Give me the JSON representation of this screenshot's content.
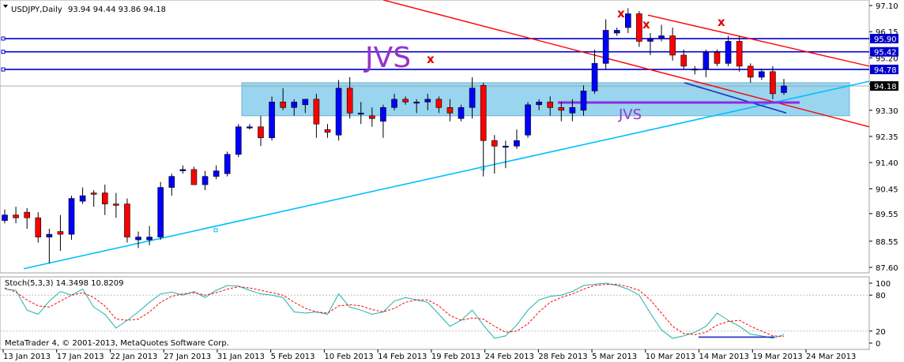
{
  "header": {
    "symbol": "USDJPY,Daily",
    "ohlc": "93.94 94.44 93.86 94.18"
  },
  "copyright": "MetaTrader 4, © 2001-2013, MetaQuotes Software Corp.",
  "indicator": {
    "label": "Stoch(5,3,3) 14.3498 10.8209",
    "levels": [
      "100",
      "80",
      "20",
      "0"
    ],
    "main_color": "#20b2aa",
    "signal_color": "#ff0000"
  },
  "annotations": {
    "jvs_big": "JVS",
    "jvs_small": "JVS",
    "x_marker": "x"
  },
  "colors": {
    "bull": "#0000ff",
    "bear": "#ff0000",
    "zone_fill": "#87ceeb",
    "level_line": "#0000cd",
    "trend_up": "#00bfff",
    "trend_down": "#ff0000",
    "divergence": "#8a2be2"
  },
  "chart_data": [
    {
      "type": "candlestick",
      "symbol": "USDJPY",
      "timeframe": "Daily",
      "ylim": [
        87.4,
        97.3
      ],
      "y_ticks": [
        "97.10",
        "96.15",
        "95.20",
        "94.25",
        "93.30",
        "92.35",
        "91.40",
        "90.45",
        "89.55",
        "88.55",
        "87.60"
      ],
      "current_price": "94.18",
      "horizontal_levels": [
        "95.90",
        "95.42",
        "94.78"
      ],
      "x_labels": [
        "13 Jan 2013",
        "17 Jan 2013",
        "22 Jan 2013",
        "27 Jan 2013",
        "31 Jan 2013",
        "5 Feb 2013",
        "10 Feb 2013",
        "14 Feb 2013",
        "19 Feb 2013",
        "24 Feb 2013",
        "28 Feb 2013",
        "5 Mar 2013",
        "10 Mar 2013",
        "14 Mar 2013",
        "19 Mar 2013",
        "24 Mar 2013"
      ],
      "support_zone": [
        93.1,
        94.3
      ],
      "candles": [
        [
          89.3,
          89.7,
          89.2,
          89.5
        ],
        [
          89.5,
          89.8,
          89.2,
          89.4
        ],
        [
          89.6,
          89.75,
          89.0,
          89.4
        ],
        [
          89.4,
          89.6,
          88.5,
          88.7
        ],
        [
          88.7,
          89.0,
          87.75,
          88.8
        ],
        [
          88.9,
          89.5,
          88.2,
          88.8
        ],
        [
          88.8,
          90.2,
          88.6,
          90.1
        ],
        [
          90.0,
          90.5,
          89.9,
          90.2
        ],
        [
          90.3,
          90.4,
          89.8,
          90.25
        ],
        [
          90.3,
          90.6,
          89.5,
          89.9
        ],
        [
          89.9,
          90.3,
          89.4,
          89.85
        ],
        [
          89.9,
          90.1,
          88.5,
          88.7
        ],
        [
          88.6,
          88.9,
          88.3,
          88.7
        ],
        [
          88.6,
          89.1,
          88.4,
          88.7
        ],
        [
          88.7,
          90.7,
          88.6,
          90.5
        ],
        [
          90.5,
          91.0,
          90.2,
          90.9
        ],
        [
          91.1,
          91.3,
          91.0,
          91.15
        ],
        [
          91.15,
          91.25,
          90.6,
          90.6
        ],
        [
          90.6,
          91.1,
          90.4,
          90.9
        ],
        [
          90.9,
          91.3,
          90.8,
          91.1
        ],
        [
          91.0,
          91.8,
          90.9,
          91.7
        ],
        [
          91.7,
          92.8,
          91.6,
          92.7
        ],
        [
          92.7,
          92.8,
          92.6,
          92.7
        ],
        [
          92.7,
          93.1,
          92.0,
          92.3
        ],
        [
          92.3,
          93.8,
          92.2,
          93.6
        ],
        [
          93.6,
          94.1,
          93.3,
          93.4
        ],
        [
          93.4,
          93.7,
          93.1,
          93.6
        ],
        [
          93.5,
          93.7,
          93.2,
          93.7
        ],
        [
          93.7,
          93.9,
          92.3,
          92.8
        ],
        [
          92.6,
          92.8,
          92.3,
          92.5
        ],
        [
          92.4,
          94.4,
          92.2,
          94.1
        ],
        [
          94.1,
          94.5,
          93.0,
          93.2
        ],
        [
          93.2,
          93.6,
          92.8,
          93.2
        ],
        [
          93.1,
          93.4,
          92.7,
          93.0
        ],
        [
          92.9,
          93.5,
          92.3,
          93.4
        ],
        [
          93.4,
          93.9,
          93.3,
          93.7
        ],
        [
          93.7,
          93.8,
          93.5,
          93.6
        ],
        [
          93.6,
          93.7,
          93.2,
          93.6
        ],
        [
          93.6,
          93.9,
          93.3,
          93.7
        ],
        [
          93.7,
          93.8,
          93.2,
          93.4
        ],
        [
          93.4,
          93.7,
          92.9,
          93.2
        ],
        [
          93.0,
          93.5,
          92.9,
          93.4
        ],
        [
          93.4,
          94.5,
          93.0,
          94.1
        ],
        [
          94.2,
          94.3,
          90.9,
          92.2
        ],
        [
          92.2,
          92.4,
          91.0,
          92.0
        ],
        [
          92.0,
          92.2,
          91.2,
          92.0
        ],
        [
          92.0,
          92.6,
          91.9,
          92.2
        ],
        [
          92.4,
          93.6,
          92.3,
          93.5
        ],
        [
          93.5,
          93.7,
          93.3,
          93.6
        ],
        [
          93.6,
          93.8,
          93.1,
          93.4
        ],
        [
          93.4,
          93.6,
          92.9,
          93.3
        ],
        [
          93.2,
          93.7,
          92.9,
          93.4
        ],
        [
          93.3,
          94.2,
          93.1,
          94.0
        ],
        [
          94.0,
          95.5,
          93.9,
          95.0
        ],
        [
          95.0,
          96.6,
          94.8,
          96.2
        ],
        [
          96.1,
          96.3,
          96.0,
          96.2
        ],
        [
          96.3,
          97.0,
          96.1,
          96.8
        ],
        [
          96.8,
          96.9,
          95.6,
          95.8
        ],
        [
          95.8,
          96.1,
          95.3,
          95.9
        ],
        [
          95.9,
          96.4,
          95.8,
          96.0
        ],
        [
          96.0,
          96.3,
          95.1,
          95.3
        ],
        [
          95.3,
          95.5,
          94.8,
          94.9
        ],
        [
          94.8,
          94.9,
          94.6,
          94.8
        ],
        [
          94.8,
          95.5,
          94.5,
          95.4
        ],
        [
          95.4,
          95.5,
          94.9,
          95.0
        ],
        [
          95.0,
          96.0,
          94.9,
          95.8
        ],
        [
          95.8,
          96.0,
          94.7,
          94.9
        ],
        [
          94.9,
          95.0,
          94.3,
          94.5
        ],
        [
          94.5,
          94.8,
          94.4,
          94.7
        ],
        [
          94.7,
          94.9,
          93.7,
          93.9
        ],
        [
          93.94,
          94.44,
          93.86,
          94.18
        ]
      ]
    },
    {
      "type": "line",
      "name": "Stoch(5,3,3)",
      "ylim": [
        0,
        100
      ],
      "series": [
        {
          "values": [
            90,
            88,
            55,
            48,
            70,
            86,
            80,
            90,
            60,
            48,
            25,
            38,
            52,
            68,
            82,
            85,
            80,
            86,
            76,
            88,
            96,
            95,
            88,
            82,
            80,
            76,
            52,
            50,
            52,
            48,
            82,
            60,
            55,
            48,
            52,
            70,
            76,
            72,
            68,
            48,
            28,
            38,
            55,
            30,
            8,
            12,
            30,
            55,
            72,
            78,
            80,
            86,
            96,
            98,
            100,
            96,
            90,
            80,
            50,
            22,
            8,
            12,
            18,
            28,
            50,
            38,
            28,
            15,
            12,
            8,
            14
          ]
        },
        {
          "values": [
            92,
            85,
            72,
            62,
            60,
            70,
            80,
            84,
            76,
            62,
            40,
            38,
            40,
            52,
            68,
            78,
            82,
            84,
            80,
            84,
            90,
            94,
            92,
            88,
            84,
            80,
            68,
            58,
            52,
            50,
            62,
            64,
            62,
            56,
            52,
            58,
            68,
            72,
            72,
            62,
            46,
            38,
            42,
            40,
            28,
            18,
            20,
            32,
            52,
            68,
            76,
            82,
            90,
            96,
            98,
            98,
            94,
            88,
            72,
            50,
            28,
            16,
            14,
            18,
            30,
            36,
            38,
            28,
            20,
            12,
            11
          ]
        }
      ]
    }
  ]
}
